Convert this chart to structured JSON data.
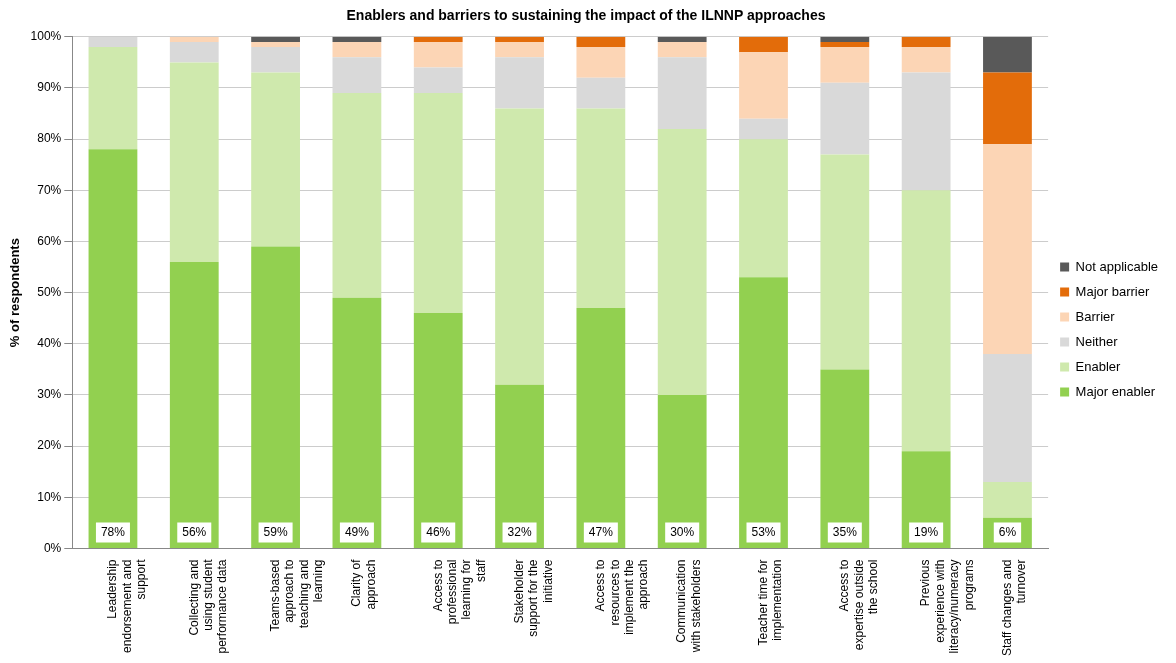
{
  "chart_data": {
    "type": "bar",
    "stacked": true,
    "title": "Enablers and barriers to sustaining the impact of the ILNNP approaches",
    "ylabel": "% of respondents",
    "categories": [
      "Leadership endorsement and support",
      "Collecting and using student performance data",
      "Teams-based approach to teaching and learning",
      "Clarity of approach",
      "Access to professional learning for staff",
      "Stakeholder support for the initiative",
      "Access to resources to implement the approach",
      "Communication with stakeholders",
      "Teacher time for implementation",
      "Access to expertise outside the school",
      "Previous experience with literacy/numeracy programs",
      "Staff changes and turnover"
    ],
    "series": [
      {
        "name": "Major enabler",
        "color": "#92d050",
        "values": [
          78,
          56,
          59,
          49,
          46,
          32,
          47,
          30,
          53,
          35,
          19,
          6
        ],
        "value_labels": [
          "78%",
          "56%",
          "59%",
          "49%",
          "46%",
          "32%",
          "47%",
          "30%",
          "53%",
          "35%",
          "19%",
          "6%"
        ]
      },
      {
        "name": "Enabler",
        "color": "#cfe9ad",
        "values": [
          20,
          39,
          34,
          40,
          43,
          54,
          39,
          52,
          27,
          42,
          51,
          7
        ]
      },
      {
        "name": "Neither",
        "color": "#d9d9d9",
        "values": [
          2,
          4,
          5,
          7,
          5,
          10,
          6,
          14,
          4,
          14,
          23,
          25
        ]
      },
      {
        "name": "Barrier",
        "color": "#fcd5b5",
        "values": [
          0,
          1,
          1,
          3,
          5,
          3,
          6,
          3,
          13,
          7,
          5,
          41
        ]
      },
      {
        "name": "Major barrier",
        "color": "#e36c0a",
        "values": [
          0,
          0,
          0,
          0,
          1,
          1,
          2,
          0,
          3,
          1,
          2,
          14
        ]
      },
      {
        "name": "Not applicable",
        "color": "#595959",
        "values": [
          0,
          0,
          1,
          1,
          0,
          0,
          0,
          1,
          0,
          1,
          0,
          7
        ]
      }
    ],
    "ylim": [
      0,
      100
    ],
    "yticks": [
      {
        "value": 0,
        "label": "0%"
      },
      {
        "value": 10,
        "label": "10%"
      },
      {
        "value": 20,
        "label": "20%"
      },
      {
        "value": 30,
        "label": "30%"
      },
      {
        "value": 40,
        "label": "40%"
      },
      {
        "value": 50,
        "label": "50%"
      },
      {
        "value": 60,
        "label": "60%"
      },
      {
        "value": 70,
        "label": "70%"
      },
      {
        "value": 80,
        "label": "80%"
      },
      {
        "value": 90,
        "label": "90%"
      },
      {
        "value": 100,
        "label": "100%"
      }
    ],
    "grid": "y",
    "legend": "right"
  }
}
